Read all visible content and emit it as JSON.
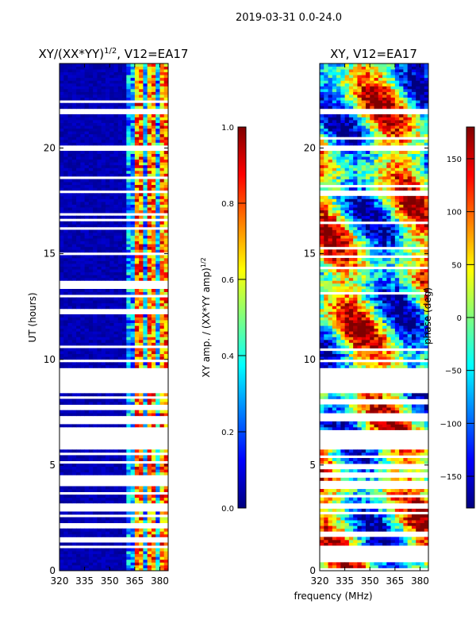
{
  "page": {
    "suptitle": "2019-03-31 0.0-24.0",
    "shared_xlabel": "frequency (MHz)"
  },
  "colormap": {
    "name": "jet",
    "stops": [
      "#00007f",
      "#0000ff",
      "#007fff",
      "#00ffff",
      "#7fff7f",
      "#ffff00",
      "#ff7f00",
      "#ff0000",
      "#7f0000"
    ]
  },
  "chart_data": [
    {
      "type": "heatmap",
      "id": "amp",
      "title_main": "XY/(XX*YY)",
      "title_sup": "1/2",
      "title_tail": ", V12=EA17",
      "ylabel": "UT (hours)",
      "xlim": [
        320,
        385
      ],
      "ylim": [
        0,
        24
      ],
      "xticks": [
        {
          "v": 320,
          "label": "320"
        },
        {
          "v": 335,
          "label": "335"
        },
        {
          "v": 350,
          "label": "350"
        },
        {
          "v": 365,
          "label": "365"
        },
        {
          "v": 380,
          "label": "380"
        }
      ],
      "yticks": [
        {
          "v": 0,
          "label": "0"
        },
        {
          "v": 5,
          "label": "5"
        },
        {
          "v": 10,
          "label": "10"
        },
        {
          "v": 15,
          "label": "15"
        },
        {
          "v": 20,
          "label": "20"
        }
      ],
      "bright_band_mhz": [
        361,
        385
      ],
      "colorbar": {
        "label_main": "XY amp. / (XX*YY amp)",
        "label_sup": "1/2",
        "range": [
          0.0,
          1.0
        ],
        "ticks": [
          {
            "v": 0.0,
            "label": "0.0"
          },
          {
            "v": 0.2,
            "label": "0.2"
          },
          {
            "v": 0.4,
            "label": "0.4"
          },
          {
            "v": 0.6,
            "label": "0.6"
          },
          {
            "v": 0.8,
            "label": "0.8"
          },
          {
            "v": 1.0,
            "label": "1.0"
          }
        ]
      }
    },
    {
      "type": "heatmap",
      "id": "phase",
      "title_main": "XY, V12=EA17",
      "ylabel": "",
      "xlim": [
        320,
        385
      ],
      "ylim": [
        0,
        24
      ],
      "xticks": [
        {
          "v": 320,
          "label": "320"
        },
        {
          "v": 335,
          "label": "335"
        },
        {
          "v": 350,
          "label": "350"
        },
        {
          "v": 365,
          "label": "365"
        },
        {
          "v": 380,
          "label": "380"
        }
      ],
      "yticks": [
        {
          "v": 0,
          "label": "0"
        },
        {
          "v": 5,
          "label": "5"
        },
        {
          "v": 10,
          "label": "10"
        },
        {
          "v": 15,
          "label": "15"
        },
        {
          "v": 20,
          "label": "20"
        }
      ],
      "colorbar": {
        "label_main": "phase (deg)",
        "range": [
          -180,
          180
        ],
        "ticks": [
          {
            "v": -150,
            "label": "−150"
          },
          {
            "v": -100,
            "label": "−100"
          },
          {
            "v": -50,
            "label": "−50"
          },
          {
            "v": 0,
            "label": "0"
          },
          {
            "v": 50,
            "label": "50"
          },
          {
            "v": 100,
            "label": "100"
          },
          {
            "v": 150,
            "label": "150"
          }
        ]
      }
    }
  ],
  "data_rows": {
    "gap_intervals_hours": [
      [
        9.6,
        8.4
      ],
      [
        7.3,
        7.1
      ],
      [
        6.6,
        5.9
      ],
      [
        21.8,
        21.6
      ],
      [
        20.1,
        19.9
      ]
    ]
  }
}
